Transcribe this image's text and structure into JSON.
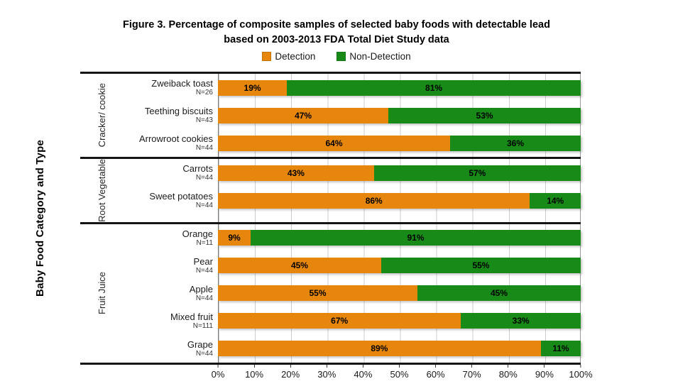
{
  "title": {
    "line1": "Figure 3. Percentage of composite samples of selected baby foods with detectable lead",
    "line2": "based on 2003-2013 FDA Total Diet Study data"
  },
  "legend": [
    {
      "label": "Detection",
      "color": "#E6860D"
    },
    {
      "label": "Non-Detection",
      "color": "#178A17"
    }
  ],
  "y_axis_title": "Baby Food Category and Type",
  "colors": {
    "detection": "#E6860D",
    "non_detection": "#178A17",
    "border": "#141414",
    "gridline": "#c9c9c9"
  },
  "x_axis": {
    "ticks": [
      "0%",
      "10%",
      "20%",
      "30%",
      "40%",
      "50%",
      "60%",
      "70%",
      "80%",
      "90%",
      "100%"
    ]
  },
  "chart_data": {
    "type": "bar",
    "orientation": "horizontal",
    "stacked": true,
    "xlim": [
      0,
      100
    ],
    "grid": true,
    "legend_position": "top",
    "series_names": [
      "Detection",
      "Non-Detection"
    ],
    "groups": [
      {
        "label": "Cracker/ cookie",
        "rows": [
          {
            "name": "Zweiback toast",
            "n": "N=26",
            "detection": 19,
            "non_detection": 81
          },
          {
            "name": "Teething biscuits",
            "n": "N=43",
            "detection": 47,
            "non_detection": 53
          },
          {
            "name": "Arrowroot cookies",
            "n": "N=44",
            "detection": 64,
            "non_detection": 36
          }
        ]
      },
      {
        "label": "Root Vegetable",
        "rows": [
          {
            "name": "Carrots",
            "n": "N=44",
            "detection": 43,
            "non_detection": 57
          },
          {
            "name": "Sweet potatoes",
            "n": "N=44",
            "detection": 86,
            "non_detection": 14
          }
        ]
      },
      {
        "label": "Fruit Juice",
        "rows": [
          {
            "name": "Orange",
            "n": "N=11",
            "detection": 9,
            "non_detection": 91
          },
          {
            "name": "Pear",
            "n": "N=44",
            "detection": 45,
            "non_detection": 55
          },
          {
            "name": "Apple",
            "n": "N=44",
            "detection": 55,
            "non_detection": 45
          },
          {
            "name": "Mixed fruit",
            "n": "N=111",
            "detection": 67,
            "non_detection": 33
          },
          {
            "name": "Grape",
            "n": "N=44",
            "detection": 89,
            "non_detection": 11
          }
        ]
      }
    ]
  }
}
